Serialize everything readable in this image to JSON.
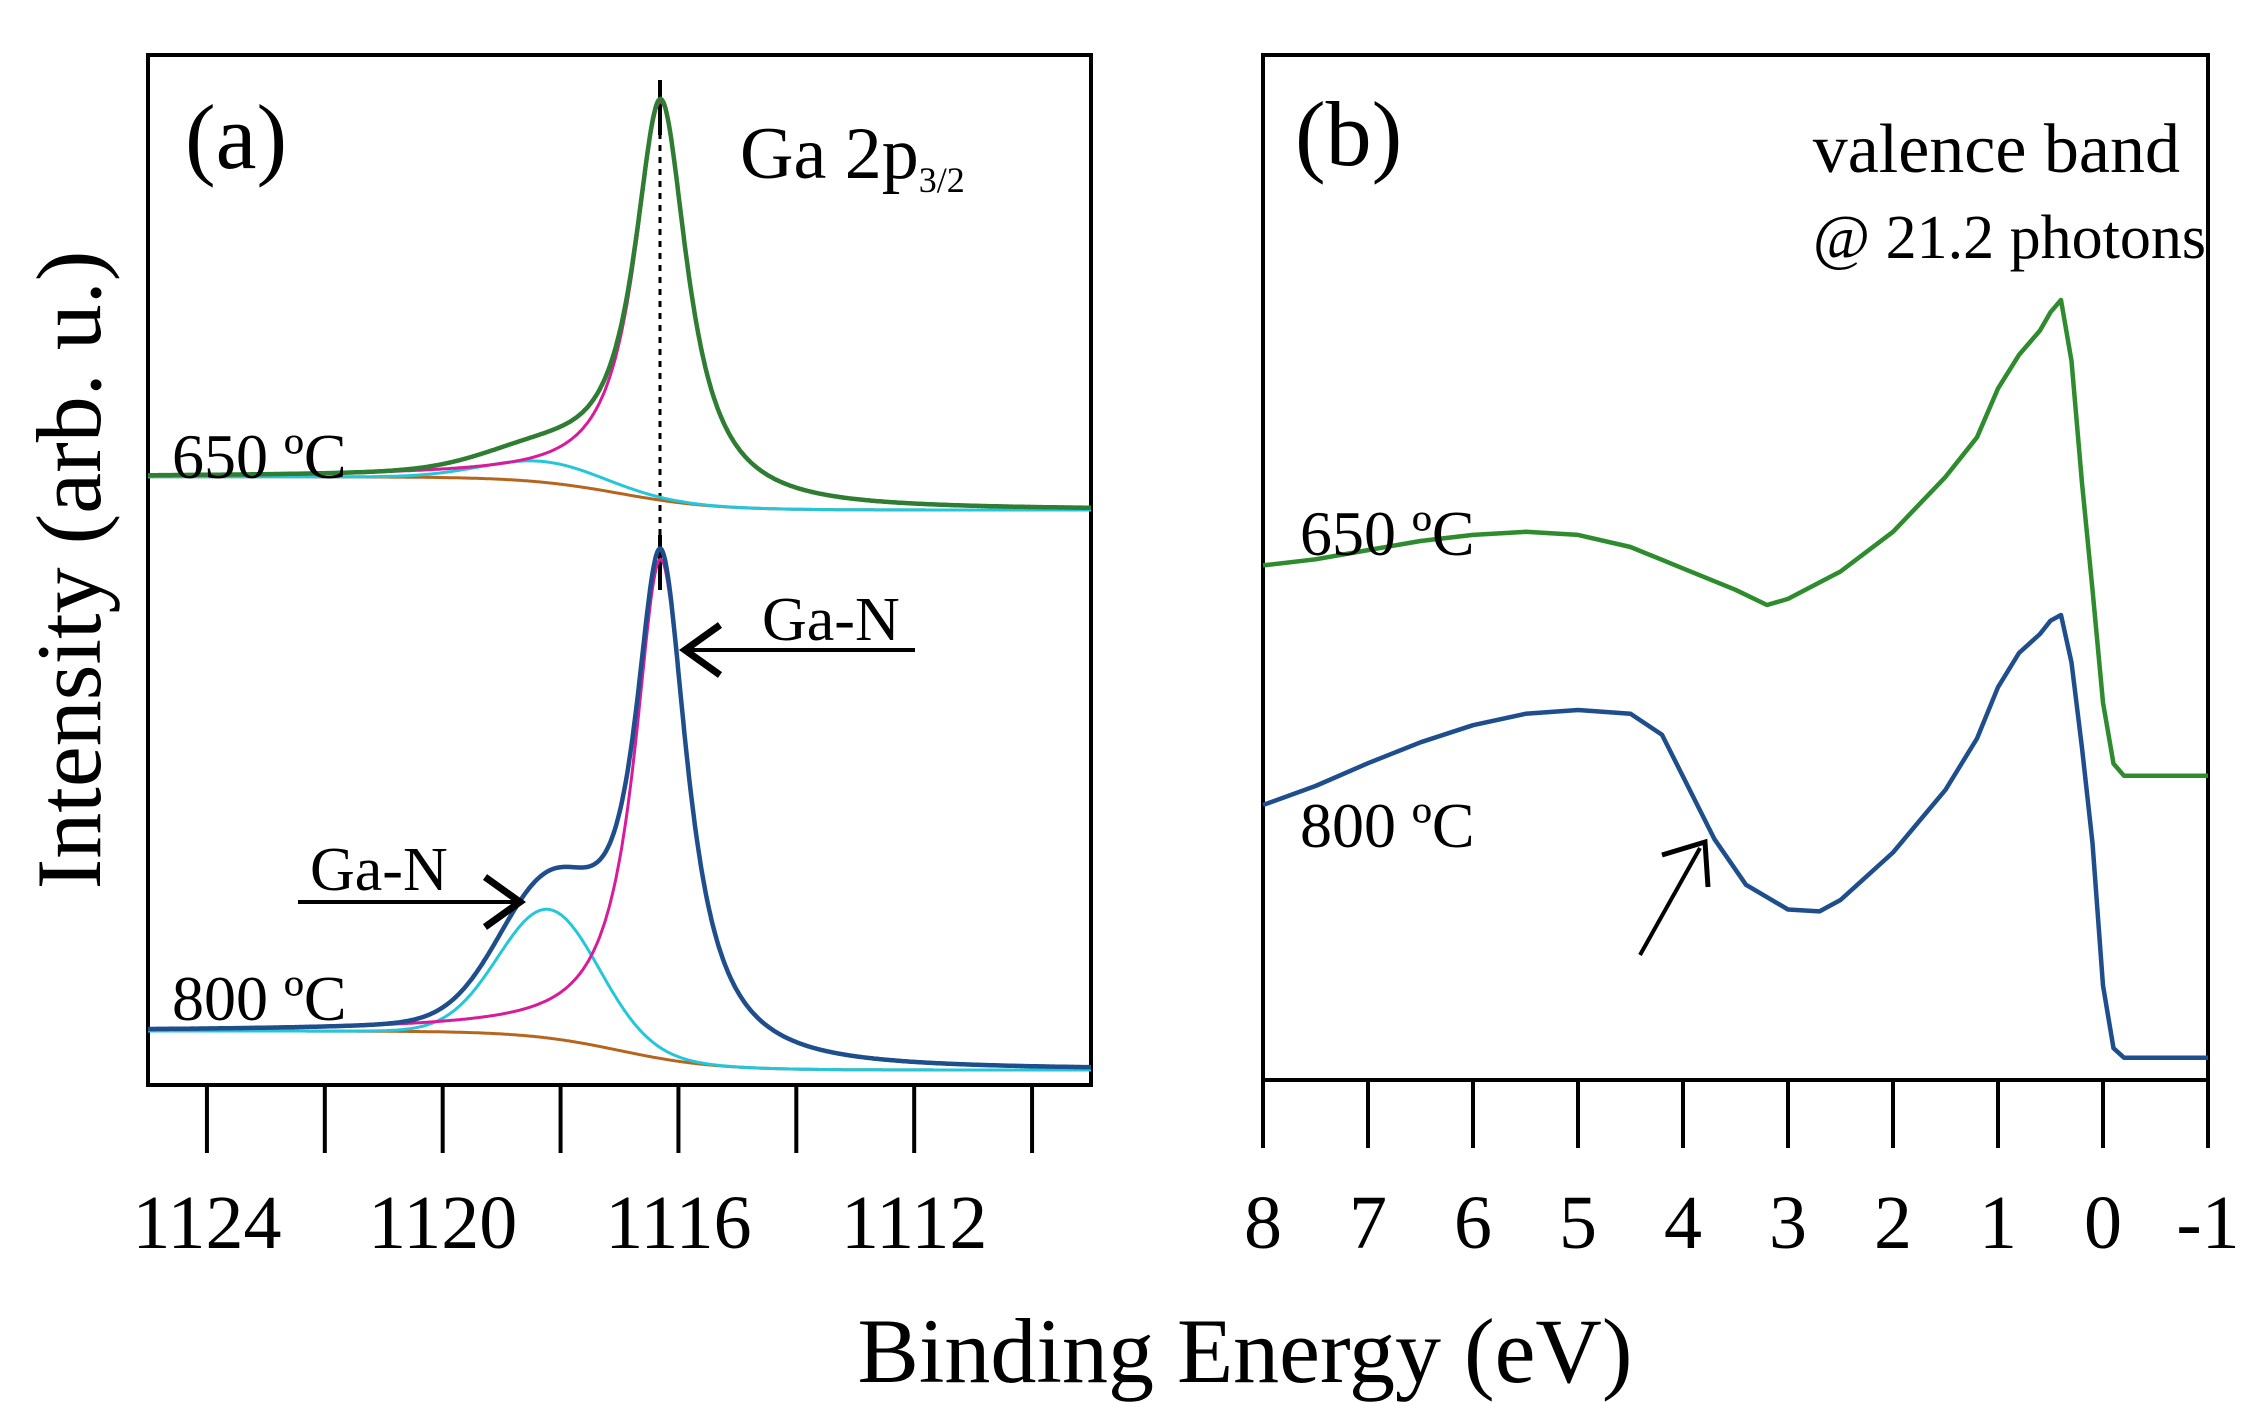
{
  "figure": {
    "ylabel": "Intensity (arb. u.)",
    "xlabel": "Binding Energy (eV)"
  },
  "chart_data": [
    {
      "type": "line",
      "panel_label": "(a)",
      "title": "Ga 2p",
      "title_subscript": "3/2",
      "xlabel": "Binding Energy (eV)",
      "ylabel": "Intensity (arb. u.)",
      "xlim": [
        1125,
        1109
      ],
      "x_ticks": [
        1124,
        1122,
        1120,
        1118,
        1116,
        1114,
        1112,
        1110
      ],
      "x_tick_labels": [
        "1124",
        "1120",
        "1116",
        "1112"
      ],
      "x_tick_label_values": [
        1124,
        1120,
        1116,
        1112
      ],
      "y_ticks": "none",
      "peak_reference_line_x": 1116.3,
      "spectra": [
        {
          "label": "650 ºC",
          "baseline_start": 0.08,
          "baseline_end": 0.0,
          "step_center": 1117.0,
          "main_peak": {
            "component": "Ga-N",
            "center": 1116.3,
            "height": 0.96,
            "width": 0.55
          },
          "shoulder": {
            "center": 1118.3,
            "height": 0.05,
            "width": 1.0
          },
          "colors": {
            "envelope": "#2e7d32",
            "main": "#d81b9a",
            "shoulder": "#26c6da",
            "background": "#b5651d"
          }
        },
        {
          "label": "800 ºC",
          "baseline_start": 0.1,
          "baseline_end": 0.0,
          "step_center": 1117.0,
          "main_peak": {
            "component": "Ga-N",
            "center": 1116.3,
            "height": 1.28,
            "width": 0.55
          },
          "shoulder": {
            "component": "Ga-N",
            "center": 1118.2,
            "height": 0.33,
            "width": 0.85
          },
          "colors": {
            "envelope": "#1f4e8c",
            "main": "#d81b9a",
            "shoulder": "#26c6da",
            "background": "#b5651d"
          }
        }
      ],
      "annotations": [
        "Ga-N",
        "Ga-N"
      ]
    },
    {
      "type": "line",
      "panel_label": "(b)",
      "title": "valence band",
      "subtitle": "@ 21.2 photons",
      "xlim": [
        8,
        -1
      ],
      "x_ticks": [
        8,
        7,
        6,
        5,
        4,
        3,
        2,
        1,
        0,
        -1
      ],
      "x_tick_labels": [
        "8",
        "7",
        "6",
        "5",
        "4",
        "3",
        "2",
        "1",
        "0",
        "-1"
      ],
      "y_ticks": "none",
      "series": [
        {
          "name": "650 ºC",
          "color": "#2e8b2e",
          "x": [
            8.0,
            7.5,
            7.0,
            6.5,
            6.0,
            5.5,
            5.0,
            4.5,
            4.0,
            3.5,
            3.2,
            3.0,
            2.5,
            2.0,
            1.5,
            1.2,
            1.0,
            0.8,
            0.6,
            0.5,
            0.4,
            0.3,
            0.2,
            0.1,
            0.0,
            -0.1,
            -0.2,
            -0.3,
            -1.0
          ],
          "values": [
            0.13,
            0.15,
            0.18,
            0.21,
            0.23,
            0.24,
            0.23,
            0.19,
            0.12,
            0.05,
            0.0,
            0.02,
            0.11,
            0.24,
            0.42,
            0.55,
            0.71,
            0.82,
            0.9,
            0.96,
            1.0,
            0.8,
            0.4,
            0.05,
            -0.32,
            -0.52,
            -0.56,
            -0.56,
            -0.56
          ],
          "label_text": "650 ºC"
        },
        {
          "name": "800 ºC",
          "color": "#1f4e8c",
          "x": [
            8.0,
            7.5,
            7.0,
            6.5,
            6.0,
            5.5,
            5.0,
            4.5,
            4.2,
            4.0,
            3.7,
            3.4,
            3.0,
            2.7,
            2.5,
            2.0,
            1.5,
            1.2,
            1.0,
            0.8,
            0.6,
            0.5,
            0.4,
            0.3,
            0.2,
            0.1,
            0.0,
            -0.1,
            -0.2,
            -0.3,
            -1.0
          ],
          "values": [
            0.0,
            0.1,
            0.22,
            0.33,
            0.42,
            0.48,
            0.5,
            0.48,
            0.37,
            0.15,
            -0.18,
            -0.42,
            -0.55,
            -0.56,
            -0.5,
            -0.25,
            0.08,
            0.35,
            0.62,
            0.8,
            0.9,
            0.97,
            1.0,
            0.75,
            0.3,
            -0.2,
            -0.95,
            -1.28,
            -1.33,
            -1.33,
            -1.33
          ],
          "label_text": "800 ºC"
        }
      ],
      "annotations": [
        "arrow at ~4 eV dip (800 ºC)"
      ]
    }
  ]
}
